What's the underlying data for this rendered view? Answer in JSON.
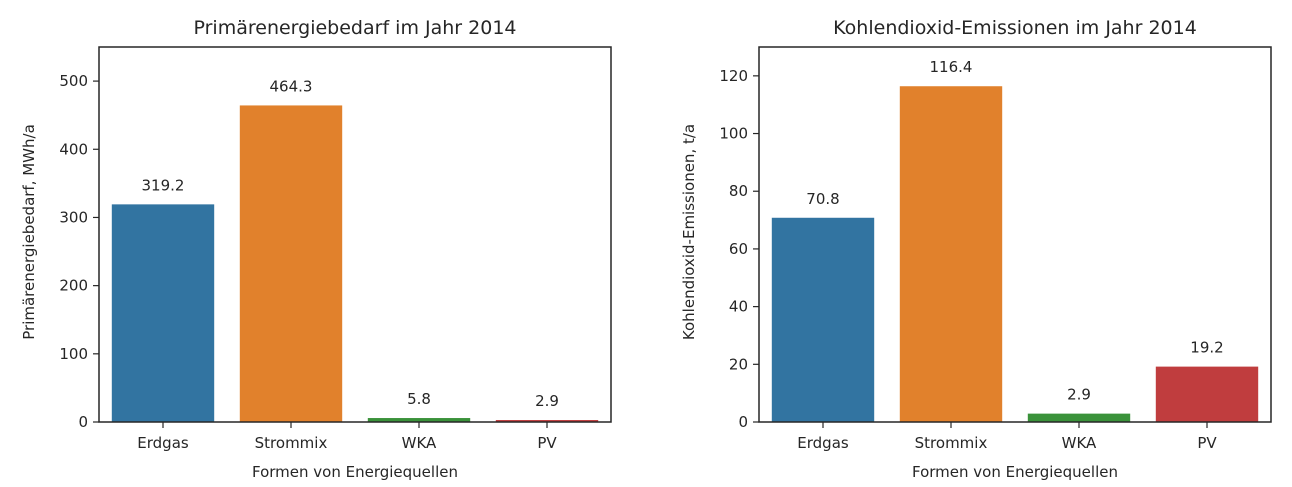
{
  "chart_data": [
    {
      "type": "bar",
      "title": "Primärenergiebedarf im Jahr 2014",
      "xlabel": "Formen von Energiequellen",
      "ylabel": "Primärenergiebedarf, MWh/a",
      "categories": [
        "Erdgas",
        "Strommix",
        "WKA",
        "PV"
      ],
      "values": [
        319.2,
        464.3,
        5.8,
        2.9
      ],
      "value_labels": [
        "319.2",
        "464.3",
        "5.8",
        "2.9"
      ],
      "colors": [
        "#3274a1",
        "#e1812c",
        "#3a923a",
        "#c03d3e"
      ],
      "ylim": [
        0,
        550
      ],
      "yticks": [
        0,
        100,
        200,
        300,
        400,
        500
      ],
      "grid": false,
      "legend": false
    },
    {
      "type": "bar",
      "title": "Kohlendioxid-Emissionen im Jahr 2014",
      "xlabel": "Formen von Energiequellen",
      "ylabel": "Kohlendioxid-Emissionen, t/a",
      "categories": [
        "Erdgas",
        "Strommix",
        "WKA",
        "PV"
      ],
      "values": [
        70.8,
        116.4,
        2.9,
        19.2
      ],
      "value_labels": [
        "70.8",
        "116.4",
        "2.9",
        "19.2"
      ],
      "colors": [
        "#3274a1",
        "#e1812c",
        "#3a923a",
        "#c03d3e"
      ],
      "ylim": [
        0,
        130
      ],
      "yticks": [
        0,
        20,
        40,
        60,
        80,
        100,
        120
      ],
      "grid": false,
      "legend": false
    }
  ]
}
